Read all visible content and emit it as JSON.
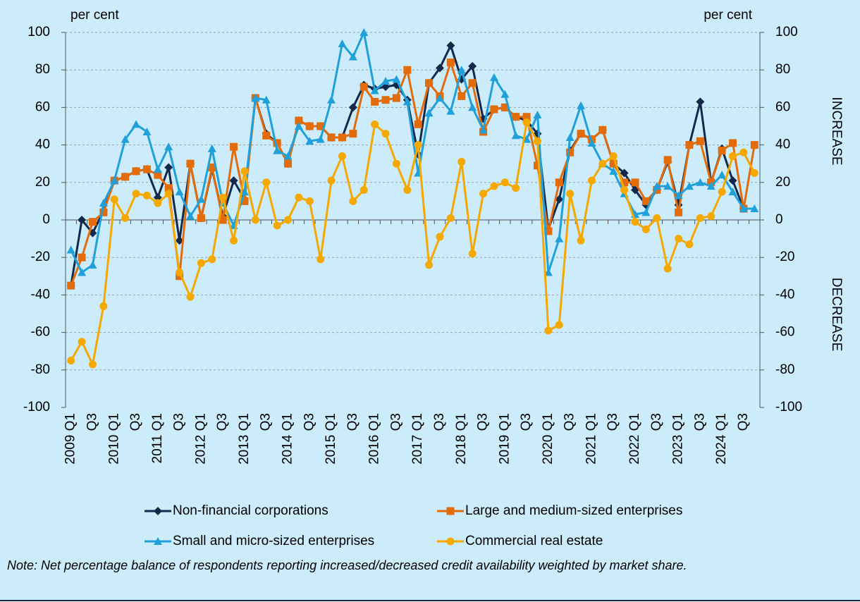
{
  "chart_data": {
    "type": "line",
    "y_label": "per cent",
    "y2_label": "per cent",
    "annotations": [
      "INCREASE",
      "DECREASE"
    ],
    "note": "Note: Net percentage balance of respondents reporting increased/decreased credit availability weighted by market share.",
    "categories": [
      "2009 Q1",
      null,
      "Q3",
      null,
      "2010 Q1",
      null,
      "Q3",
      null,
      "2011 Q1",
      null,
      "Q3",
      null,
      "2012 Q1",
      null,
      "Q3",
      null,
      "2013 Q1",
      null,
      "Q3",
      null,
      "2014 Q1",
      null,
      "Q3",
      null,
      "2015 Q1",
      null,
      "Q3",
      null,
      "2016 Q1",
      null,
      "Q3",
      null,
      "2017 Q1",
      null,
      "Q3",
      null,
      "2018 Q1",
      null,
      "Q3",
      null,
      "2019 Q1",
      null,
      "Q3",
      null,
      "2020 Q1",
      null,
      "Q3",
      null,
      "2021 Q1",
      null,
      "Q3",
      null,
      "2022 Q1",
      null,
      "Q3",
      null,
      "2023 Q1",
      null,
      "Q3",
      null,
      "2024 Q1",
      null,
      "Q3",
      null
    ],
    "series": [
      {
        "name": "Non-financial corporations",
        "color": "#14284b",
        "marker": "diamond",
        "values": [
          -35,
          0,
          -7,
          5,
          21,
          23,
          26,
          27,
          12,
          28,
          -11,
          30,
          1,
          27,
          2,
          21,
          11,
          65,
          46,
          41,
          30,
          53,
          50,
          50,
          44,
          44,
          60,
          72,
          70,
          71,
          72,
          64,
          35,
          73,
          81,
          93,
          75,
          82,
          54,
          59,
          60,
          55,
          53,
          46,
          -5,
          11,
          37,
          46,
          43,
          48,
          30,
          25,
          16,
          8,
          16,
          31,
          8,
          40,
          63,
          20,
          38,
          21,
          6,
          null
        ]
      },
      {
        "name": "Large and medium-sized enterprises",
        "color": "#e36c0a",
        "marker": "square",
        "values": [
          -35,
          -20,
          -1,
          4,
          21,
          23,
          26,
          27,
          24,
          17,
          -30,
          30,
          1,
          28,
          0,
          39,
          10,
          65,
          45,
          41,
          30,
          53,
          50,
          50,
          44,
          44,
          46,
          71,
          63,
          64,
          65,
          80,
          51,
          73,
          66,
          84,
          66,
          73,
          47,
          59,
          60,
          55,
          55,
          29,
          -6,
          20,
          36,
          46,
          43,
          48,
          30,
          20,
          20,
          10,
          16,
          32,
          4,
          40,
          42,
          20,
          37,
          41,
          6,
          40
        ]
      },
      {
        "name": "Small and micro-sized enterprises",
        "color": "#1fa0d8",
        "marker": "triangle",
        "values": [
          -16,
          -28,
          -24,
          9,
          21,
          43,
          51,
          47,
          27,
          39,
          15,
          2,
          11,
          38,
          9,
          -3,
          15,
          65,
          64,
          37,
          34,
          50,
          42,
          43,
          64,
          94,
          87,
          100,
          69,
          74,
          75,
          63,
          25,
          57,
          65,
          58,
          80,
          60,
          48,
          76,
          67,
          45,
          43,
          56,
          -28,
          -10,
          44,
          61,
          41,
          30,
          26,
          14,
          3,
          4,
          18,
          18,
          13,
          18,
          20,
          18,
          24,
          15,
          6,
          6
        ]
      },
      {
        "name": "Commercial real estate",
        "color": "#f5a800",
        "marker": "circle",
        "values": [
          -75,
          -65,
          -77,
          -46,
          11,
          1,
          14,
          13,
          9,
          14,
          -28,
          -41,
          -23,
          -21,
          12,
          -11,
          26,
          0,
          20,
          -3,
          0,
          12,
          10,
          -21,
          21,
          34,
          10,
          16,
          51,
          46,
          30,
          16,
          40,
          -24,
          -9,
          1,
          31,
          -18,
          14,
          18,
          20,
          17,
          52,
          42,
          -59,
          -56,
          14,
          -11,
          21,
          30,
          34,
          16,
          -1,
          -5,
          1,
          -26,
          -10,
          -13,
          1,
          2,
          15,
          34,
          36,
          25
        ]
      }
    ],
    "ylim": [
      -100,
      100
    ],
    "yticks": [
      -100,
      -80,
      -60,
      -40,
      -20,
      0,
      20,
      40,
      60,
      80,
      100
    ],
    "y2lim": [
      -100,
      100
    ],
    "y2ticks": [
      -100,
      -80,
      -60,
      -40,
      -20,
      0,
      20,
      40,
      60,
      80,
      100
    ],
    "grid": true
  }
}
